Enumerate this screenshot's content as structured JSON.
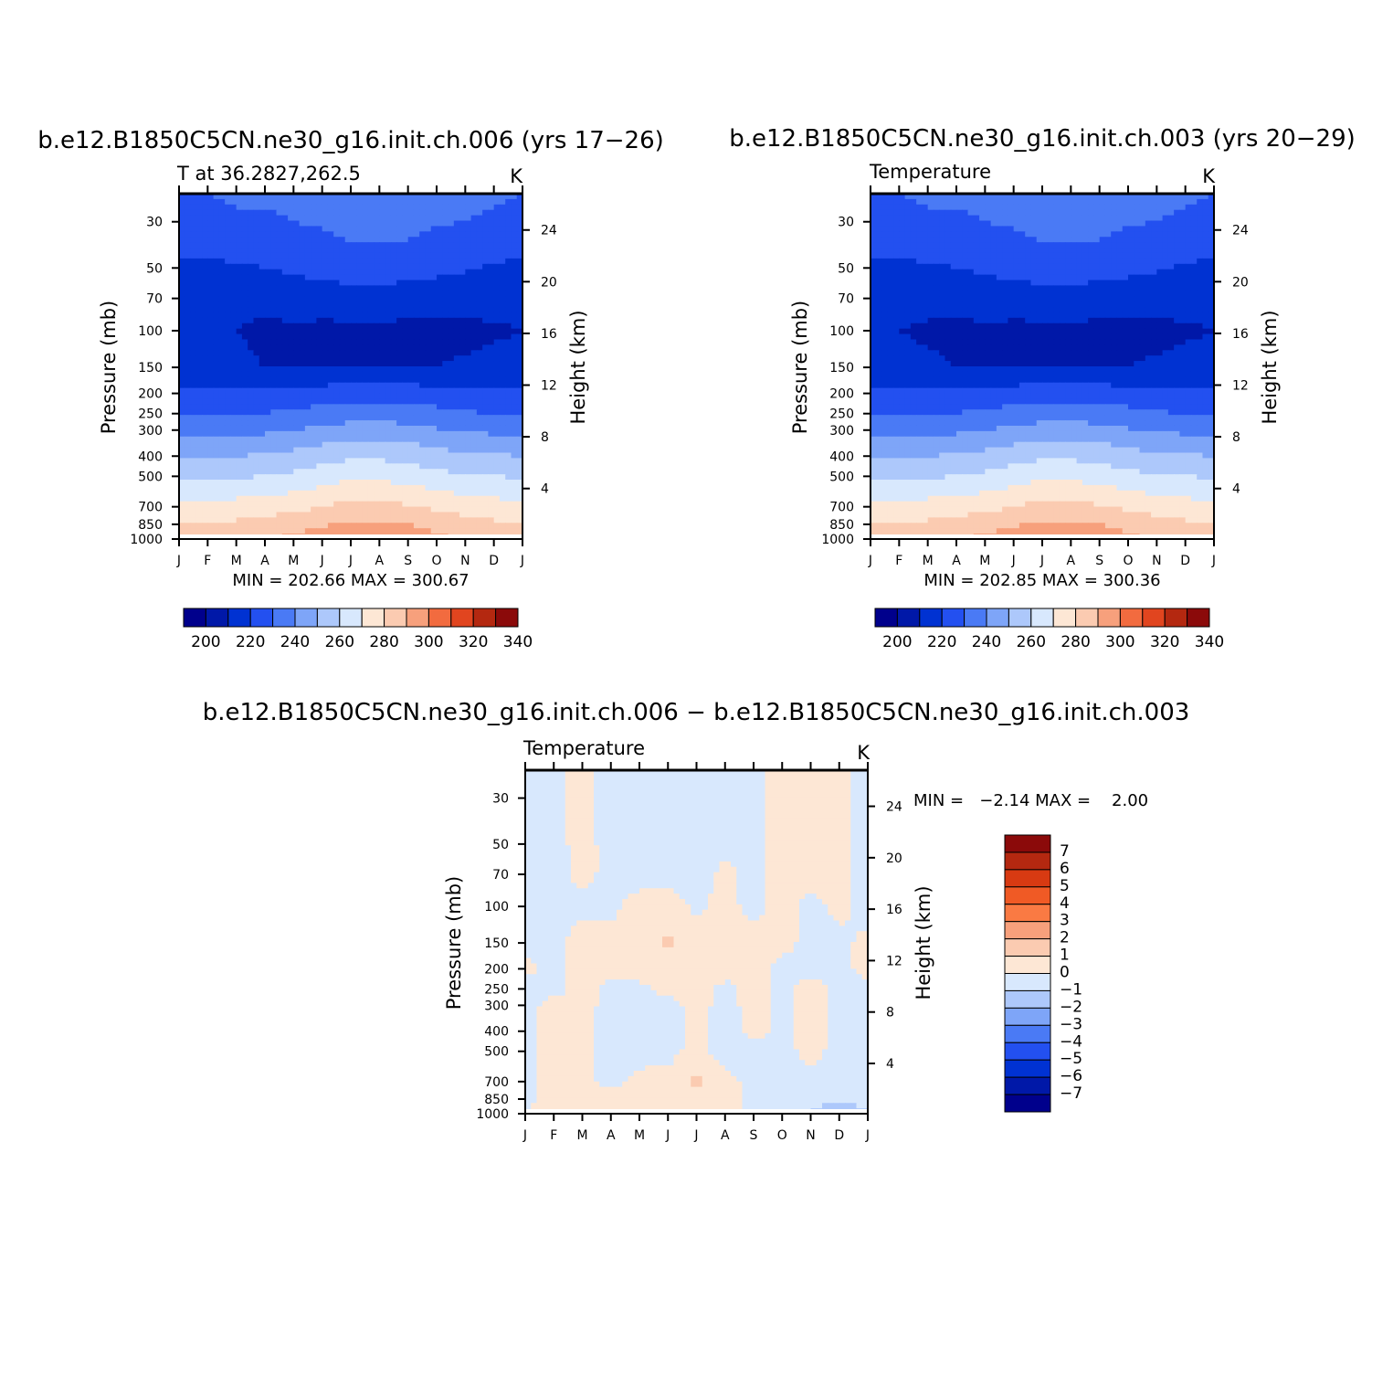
{
  "colors": {
    "abs_scale": [
      "#00008c",
      "#0018a8",
      "#0032d2",
      "#2350f0",
      "#4a7af5",
      "#7ea5f8",
      "#adc8fb",
      "#d8e8fd",
      "#fde7d5",
      "#fbcbb1",
      "#f7a07c",
      "#f26b3f",
      "#e1451f",
      "#b42810",
      "#8b0a0a"
    ],
    "diff_scale": [
      "#00008c",
      "#0018a8",
      "#0032d2",
      "#2350f0",
      "#4a7af5",
      "#7ea5f8",
      "#adc8fb",
      "#d8e8fd",
      "#fde7d5",
      "#fbcbb1",
      "#f7a07c",
      "#fa7a43",
      "#f05a25",
      "#d83a12",
      "#b42810",
      "#8b0a0a"
    ]
  },
  "panels": [
    {
      "title": "b.e12.B1850C5CN.ne30_g16.init.ch.006 (yrs 17−26)",
      "left_label": "T at 36.2827,262.5",
      "right_label": "K",
      "stats": "MIN = 202.66 MAX = 300.67",
      "colorbar_labels": [
        "200",
        "220",
        "240",
        "260",
        "280",
        "300",
        "320",
        "340"
      ],
      "icon": "contour-plot-icon"
    },
    {
      "title": "b.e12.B1850C5CN.ne30_g16.init.ch.003 (yrs 20−29)",
      "left_label": "Temperature",
      "right_label": "K",
      "stats": "MIN = 202.85 MAX = 300.36",
      "colorbar_labels": [
        "200",
        "220",
        "240",
        "260",
        "280",
        "300",
        "320",
        "340"
      ],
      "icon": "contour-plot-icon"
    },
    {
      "title": "b.e12.B1850C5CN.ne30_g16.init.ch.006 − b.e12.B1850C5CN.ne30_g16.init.ch.003",
      "left_label": "Temperature",
      "right_label": "K",
      "stats": "MIN =   −2.14 MAX =    2.00",
      "colorbar_labels": [
        "7",
        "6",
        "5",
        "4",
        "3",
        "2",
        "1",
        "0",
        "−1",
        "−2",
        "−3",
        "−4",
        "−5",
        "−6",
        "−7"
      ],
      "icon": "contour-plot-icon"
    }
  ],
  "chart_data": [
    {
      "type": "heatmap",
      "title": "b.e12.B1850C5CN.ne30_g16.init.ch.006 (yrs 17−26)",
      "subtitle": "T at 36.2827,262.5",
      "units": "K",
      "xlabel": "",
      "ylabel": "Pressure (mb)",
      "ylabel_right": "Height (km)",
      "x_categories": [
        "J",
        "F",
        "M",
        "A",
        "M",
        "J",
        "J",
        "A",
        "S",
        "O",
        "N",
        "D",
        "J"
      ],
      "y_ticks": [
        30,
        50,
        70,
        100,
        150,
        200,
        250,
        300,
        400,
        500,
        700,
        850,
        1000
      ],
      "y_right_ticks": [
        24,
        20,
        16,
        12,
        8,
        4
      ],
      "ylim": [
        1000,
        22
      ],
      "y_scale": "log",
      "months": [
        1,
        2,
        3,
        4,
        5,
        6,
        7,
        8,
        9,
        10,
        11,
        12,
        13
      ],
      "levels_mb": [
        22,
        30,
        50,
        70,
        100,
        150,
        200,
        250,
        300,
        400,
        500,
        700,
        850,
        1000
      ],
      "temperature_K": [
        [
          230,
          230,
          231,
          231,
          232,
          233,
          235,
          236,
          235,
          233,
          232,
          231,
          230
        ],
        [
          228,
          228,
          229,
          229,
          230,
          231,
          233,
          234,
          233,
          231,
          230,
          229,
          228
        ],
        [
          218,
          218,
          219,
          220,
          222,
          224,
          226,
          226,
          225,
          223,
          221,
          219,
          218
        ],
        [
          212,
          212,
          212,
          211,
          213,
          214,
          215,
          215,
          214,
          213,
          213,
          213,
          212
        ],
        [
          210,
          210,
          210,
          209,
          209,
          208,
          208,
          208,
          208,
          208,
          208,
          209,
          210
        ],
        [
          212,
          212,
          211,
          210,
          210,
          210,
          210,
          210,
          210,
          210,
          211,
          212,
          212
        ],
        [
          222,
          222,
          222,
          222,
          222,
          224,
          226,
          226,
          225,
          224,
          223,
          222,
          222
        ],
        [
          229,
          229,
          229,
          230,
          232,
          234,
          236,
          236,
          235,
          233,
          231,
          230,
          229
        ],
        [
          237,
          237,
          237,
          238,
          240,
          242,
          244,
          244,
          243,
          241,
          239,
          238,
          237
        ],
        [
          250,
          250,
          250,
          251,
          253,
          256,
          258,
          258,
          257,
          254,
          252,
          251,
          250
        ],
        [
          259,
          259,
          259,
          260,
          262,
          265,
          268,
          268,
          266,
          263,
          261,
          260,
          259
        ],
        [
          273,
          273,
          274,
          275,
          277,
          280,
          283,
          283,
          281,
          278,
          276,
          274,
          273
        ],
        [
          281,
          281,
          282,
          284,
          286,
          289,
          292,
          292,
          290,
          286,
          284,
          282,
          281
        ],
        [
          286,
          286,
          287,
          289,
          292,
          296,
          300,
          300,
          297,
          292,
          289,
          287,
          286
        ]
      ],
      "contour_levels": [
        200,
        210,
        220,
        230,
        240,
        250,
        260,
        270,
        280,
        290,
        300,
        310,
        320,
        330,
        340
      ],
      "colorbar_labels": [
        "200",
        "220",
        "240",
        "260",
        "280",
        "300",
        "320",
        "340"
      ],
      "min": 202.66,
      "max": 300.67,
      "colorbar": "horizontal",
      "grid": false
    },
    {
      "type": "heatmap",
      "title": "b.e12.B1850C5CN.ne30_g16.init.ch.003 (yrs 20−29)",
      "subtitle": "Temperature",
      "units": "K",
      "xlabel": "",
      "ylabel": "Pressure (mb)",
      "ylabel_right": "Height (km)",
      "x_categories": [
        "J",
        "F",
        "M",
        "A",
        "M",
        "J",
        "J",
        "A",
        "S",
        "O",
        "N",
        "D",
        "J"
      ],
      "y_ticks": [
        30,
        50,
        70,
        100,
        150,
        200,
        250,
        300,
        400,
        500,
        700,
        850,
        1000
      ],
      "y_right_ticks": [
        24,
        20,
        16,
        12,
        8,
        4
      ],
      "ylim": [
        1000,
        22
      ],
      "y_scale": "log",
      "months": [
        1,
        2,
        3,
        4,
        5,
        6,
        7,
        8,
        9,
        10,
        11,
        12,
        13
      ],
      "levels_mb": [
        22,
        30,
        50,
        70,
        100,
        150,
        200,
        250,
        300,
        400,
        500,
        700,
        850,
        1000
      ],
      "temperature_K": [
        [
          230,
          230,
          231,
          231,
          232,
          233,
          235,
          236,
          235,
          233,
          232,
          231,
          230
        ],
        [
          228,
          228,
          229,
          229,
          230,
          231,
          233,
          234,
          233,
          231,
          230,
          229,
          228
        ],
        [
          218,
          218,
          219,
          220,
          222,
          224,
          226,
          226,
          225,
          223,
          221,
          219,
          218
        ],
        [
          212,
          212,
          212,
          211,
          213,
          214,
          215,
          215,
          214,
          213,
          213,
          213,
          212
        ],
        [
          210,
          210,
          209,
          209,
          209,
          208,
          208,
          208,
          208,
          208,
          208,
          209,
          210
        ],
        [
          212,
          212,
          211,
          210,
          210,
          210,
          210,
          210,
          210,
          210,
          211,
          212,
          212
        ],
        [
          222,
          222,
          222,
          222,
          222,
          224,
          226,
          226,
          225,
          224,
          223,
          222,
          222
        ],
        [
          229,
          229,
          229,
          230,
          232,
          234,
          236,
          236,
          235,
          233,
          231,
          230,
          229
        ],
        [
          237,
          237,
          237,
          238,
          240,
          242,
          244,
          244,
          243,
          241,
          239,
          238,
          237
        ],
        [
          250,
          250,
          250,
          251,
          253,
          256,
          258,
          258,
          257,
          254,
          252,
          251,
          250
        ],
        [
          259,
          259,
          259,
          260,
          262,
          265,
          268,
          268,
          266,
          263,
          261,
          260,
          259
        ],
        [
          273,
          273,
          274,
          275,
          277,
          280,
          283,
          283,
          281,
          278,
          276,
          274,
          273
        ],
        [
          281,
          281,
          282,
          284,
          286,
          289,
          292,
          292,
          290,
          286,
          284,
          282,
          281
        ],
        [
          286,
          286,
          287,
          289,
          292,
          296,
          299,
          299,
          297,
          292,
          289,
          287,
          286
        ]
      ],
      "contour_levels": [
        200,
        210,
        220,
        230,
        240,
        250,
        260,
        270,
        280,
        290,
        300,
        310,
        320,
        330,
        340
      ],
      "colorbar_labels": [
        "200",
        "220",
        "240",
        "260",
        "280",
        "300",
        "320",
        "340"
      ],
      "min": 202.85,
      "max": 300.36,
      "colorbar": "horizontal",
      "grid": false
    },
    {
      "type": "heatmap",
      "title": "b.e12.B1850C5CN.ne30_g16.init.ch.006 − b.e12.B1850C5CN.ne30_g16.init.ch.003",
      "subtitle": "Temperature",
      "units": "K",
      "xlabel": "",
      "ylabel": "Pressure (mb)",
      "ylabel_right": "Height (km)",
      "x_categories": [
        "J",
        "F",
        "M",
        "A",
        "M",
        "J",
        "J",
        "A",
        "S",
        "O",
        "N",
        "D",
        "J"
      ],
      "y_ticks": [
        30,
        50,
        70,
        100,
        150,
        200,
        250,
        300,
        400,
        500,
        700,
        850,
        1000
      ],
      "y_right_ticks": [
        24,
        20,
        16,
        12,
        8,
        4
      ],
      "ylim": [
        1000,
        22
      ],
      "y_scale": "log",
      "months": [
        1,
        2,
        3,
        4,
        5,
        6,
        7,
        8,
        9,
        10,
        11,
        12,
        13
      ],
      "levels_mb": [
        22,
        30,
        50,
        70,
        100,
        150,
        200,
        250,
        300,
        400,
        500,
        700,
        850,
        1000
      ],
      "temperature_diff_K": [
        [
          -0.4,
          -0.3,
          0.3,
          -0.4,
          -0.5,
          -0.5,
          -0.5,
          -0.4,
          -0.3,
          0.3,
          0.4,
          0.3,
          -0.4
        ],
        [
          -0.4,
          -0.3,
          0.3,
          -0.4,
          -0.5,
          -0.5,
          -0.5,
          -0.4,
          -0.3,
          0.3,
          0.4,
          0.3,
          -0.4
        ],
        [
          -0.4,
          -0.3,
          0.3,
          -0.3,
          -0.4,
          -0.5,
          -0.4,
          -0.2,
          -0.3,
          0.3,
          0.4,
          0.3,
          -0.4
        ],
        [
          -0.4,
          -0.3,
          0.2,
          -0.2,
          -0.3,
          -0.3,
          -0.4,
          0.2,
          -0.3,
          0.3,
          0.4,
          0.3,
          -0.4
        ],
        [
          -0.4,
          -0.2,
          -0.2,
          -0.2,
          0.3,
          0.5,
          -0.2,
          0.3,
          -0.3,
          0.3,
          -0.3,
          0.2,
          -0.3
        ],
        [
          -0.3,
          -0.2,
          0.3,
          0.3,
          0.4,
          1.2,
          0.4,
          0.5,
          0.3,
          0.3,
          -0.3,
          -0.2,
          0.2
        ],
        [
          0.2,
          -0.3,
          0.4,
          0.3,
          0.5,
          0.5,
          1.1,
          0.4,
          0.3,
          -0.3,
          -0.3,
          -0.3,
          0.3
        ],
        [
          -0.3,
          -0.3,
          0.3,
          -0.3,
          -0.3,
          0.3,
          0.4,
          -0.3,
          0.3,
          -0.3,
          0.4,
          -0.3,
          -0.3
        ],
        [
          -0.3,
          0.3,
          0.3,
          -0.3,
          -0.4,
          -0.3,
          0.3,
          -0.3,
          0.3,
          -0.3,
          0.4,
          -0.3,
          -0.3
        ],
        [
          -0.3,
          0.3,
          0.3,
          -0.4,
          -0.4,
          -0.4,
          0.3,
          -0.4,
          0.3,
          -0.3,
          0.4,
          -0.3,
          -0.3
        ],
        [
          -0.3,
          0.3,
          0.3,
          -0.4,
          -0.4,
          -0.3,
          0.3,
          -0.4,
          -0.3,
          -0.3,
          0.3,
          -0.3,
          -0.3
        ],
        [
          -0.3,
          0.3,
          0.3,
          -0.3,
          0.3,
          0.3,
          1.2,
          0.3,
          -0.3,
          -0.3,
          -0.3,
          -0.3,
          -0.3
        ],
        [
          -0.3,
          0.4,
          0.4,
          0.3,
          0.3,
          0.3,
          0.6,
          0.3,
          -0.3,
          -0.3,
          -0.6,
          -0.6,
          -0.4
        ],
        [
          -0.3,
          1.1,
          0.6,
          0.3,
          0.3,
          0.3,
          0.3,
          0.3,
          -0.3,
          -0.3,
          -1.1,
          -2.1,
          -1.2
        ]
      ],
      "contour_levels": [
        -7,
        -6,
        -5,
        -4,
        -3,
        -2,
        -1,
        0,
        1,
        2,
        3,
        4,
        5,
        6,
        7
      ],
      "colorbar_labels": [
        "7",
        "6",
        "5",
        "4",
        "3",
        "2",
        "1",
        "0",
        "−1",
        "−2",
        "−3",
        "−4",
        "−5",
        "−6",
        "−7"
      ],
      "min": -2.14,
      "max": 2.0,
      "colorbar": "vertical",
      "grid": false
    }
  ]
}
